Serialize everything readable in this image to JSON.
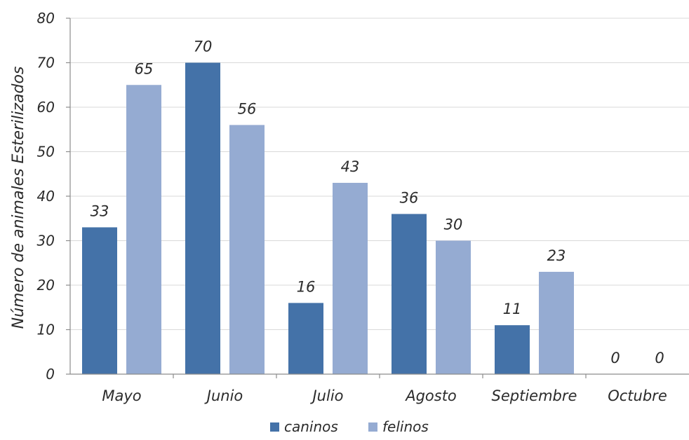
{
  "chart_data": {
    "type": "bar",
    "title": "",
    "xlabel": "",
    "ylabel": "Número de animales Esterilizados",
    "categories": [
      "Mayo",
      "Junio",
      "Julio",
      "Agosto",
      "Septiembre",
      "Octubre"
    ],
    "series": [
      {
        "name": "caninos",
        "values": [
          33,
          70,
          16,
          36,
          11,
          0
        ],
        "color": "#4472a8"
      },
      {
        "name": "felinos",
        "values": [
          65,
          56,
          43,
          30,
          23,
          0
        ],
        "color": "#95abd2"
      }
    ],
    "ylim": [
      0,
      80
    ],
    "yticks": [
      0,
      10,
      20,
      30,
      40,
      50,
      60,
      70,
      80
    ],
    "grid": true,
    "legend_position": "bottom",
    "data_labels": true
  }
}
